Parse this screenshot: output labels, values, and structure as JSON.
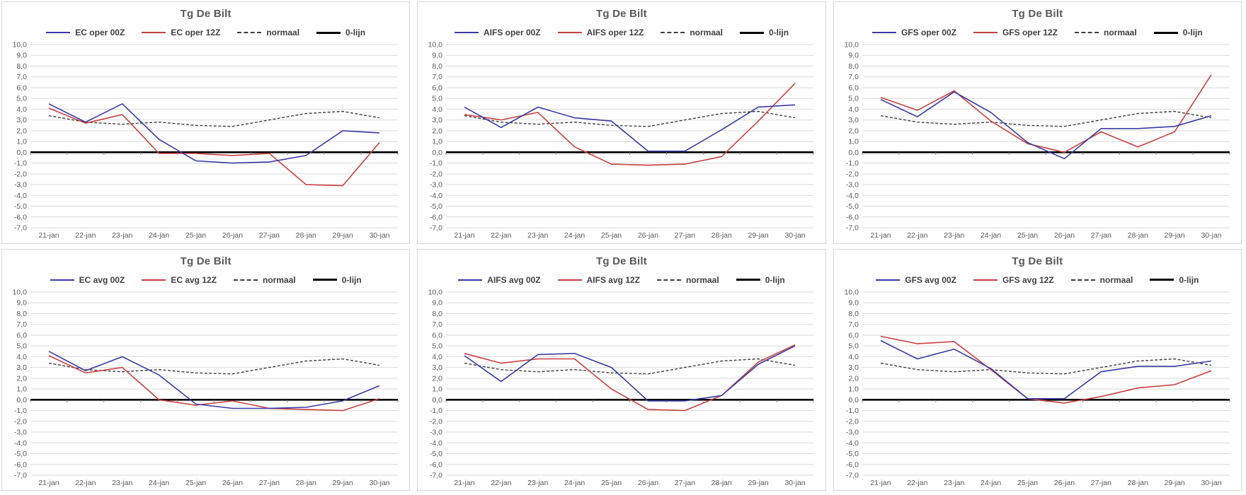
{
  "axes": {
    "y_max": 10,
    "y_min": -7,
    "y_tick_labels": [
      "10,0",
      "9,0",
      "8,0",
      "7,0",
      "6,0",
      "5,0",
      "4,0",
      "3,0",
      "2,0",
      "1,0",
      "0,0",
      "-1,0",
      "-2,0",
      "-3,0",
      "-4,0",
      "-5,0",
      "-6,0",
      "-7,0"
    ],
    "x_labels": [
      "21-jan",
      "22-jan",
      "23-jan",
      "24-jan",
      "25-jan",
      "26-jan",
      "27-jan",
      "28-jan",
      "29-jan",
      "30-jan"
    ]
  },
  "colors": {
    "series_00z_blue": "#3A3AA3",
    "series_12z_red": "#C84040",
    "normaal_dashed": "#3F3F3F",
    "zero_line": "#000000",
    "gridline": "#D9D9D9",
    "axis_text": "#595959",
    "panel_border": "#D7D7D7",
    "title_text": "#595959"
  },
  "chart_data": [
    {
      "type": "line",
      "title": "Tg De Bilt",
      "x": [
        "21-jan",
        "22-jan",
        "23-jan",
        "24-jan",
        "25-jan",
        "26-jan",
        "27-jan",
        "28-jan",
        "29-jan",
        "30-jan"
      ],
      "ylim": [
        -7,
        10
      ],
      "legend_position": "top",
      "grid": true,
      "series": [
        {
          "name": "EC oper 00Z",
          "color": "#3A3AA3",
          "style": "solid",
          "values": [
            4.5,
            2.8,
            4.5,
            1.2,
            -0.8,
            -1.0,
            -0.9,
            -0.3,
            2.0,
            1.8
          ]
        },
        {
          "name": "EC oper 12Z",
          "color": "#C84040",
          "style": "solid",
          "values": [
            4.1,
            2.7,
            3.5,
            -0.1,
            -0.1,
            -0.3,
            -0.1,
            -3.0,
            -3.1,
            0.9
          ]
        },
        {
          "name": "normaal",
          "color": "#3F3F3F",
          "style": "dashed",
          "values": [
            3.4,
            2.8,
            2.6,
            2.8,
            2.5,
            2.4,
            3.0,
            3.6,
            3.8,
            3.2
          ]
        },
        {
          "name": "0-lijn",
          "color": "#000000",
          "style": "zero",
          "values": [
            0,
            0,
            0,
            0,
            0,
            0,
            0,
            0,
            0,
            0
          ]
        }
      ]
    },
    {
      "type": "line",
      "title": "Tg De Bilt",
      "x": [
        "21-jan",
        "22-jan",
        "23-jan",
        "24-jan",
        "25-jan",
        "26-jan",
        "27-jan",
        "28-jan",
        "29-jan",
        "30-jan"
      ],
      "ylim": [
        -7,
        10
      ],
      "legend_position": "top",
      "grid": true,
      "series": [
        {
          "name": "AIFS oper 00Z",
          "color": "#3A3AA3",
          "style": "solid",
          "values": [
            4.2,
            2.3,
            4.2,
            3.2,
            2.9,
            0.1,
            0.1,
            2.1,
            4.2,
            4.4
          ]
        },
        {
          "name": "AIFS oper 12Z",
          "color": "#C84040",
          "style": "solid",
          "values": [
            3.5,
            3.0,
            3.7,
            0.5,
            -1.1,
            -1.2,
            -1.1,
            -0.4,
            2.9,
            6.4
          ]
        },
        {
          "name": "normaal",
          "color": "#3F3F3F",
          "style": "dashed",
          "values": [
            3.4,
            2.8,
            2.6,
            2.8,
            2.5,
            2.4,
            3.0,
            3.6,
            3.8,
            3.2
          ]
        },
        {
          "name": "0-lijn",
          "color": "#000000",
          "style": "zero",
          "values": [
            0,
            0,
            0,
            0,
            0,
            0,
            0,
            0,
            0,
            0
          ]
        }
      ]
    },
    {
      "type": "line",
      "title": "Tg De Bilt",
      "x": [
        "21-jan",
        "22-jan",
        "23-jan",
        "24-jan",
        "25-jan",
        "26-jan",
        "27-jan",
        "28-jan",
        "29-jan",
        "30-jan"
      ],
      "ylim": [
        -7,
        10
      ],
      "legend_position": "top",
      "grid": true,
      "series": [
        {
          "name": "GFS oper 00Z",
          "color": "#3A3AA3",
          "style": "solid",
          "values": [
            4.9,
            3.3,
            5.6,
            3.7,
            0.9,
            -0.6,
            2.2,
            2.2,
            2.4,
            3.4
          ]
        },
        {
          "name": "GFS oper 12Z",
          "color": "#C84040",
          "style": "solid",
          "values": [
            5.1,
            3.9,
            5.7,
            2.9,
            0.8,
            0.0,
            1.9,
            0.5,
            1.9,
            7.2
          ]
        },
        {
          "name": "normaal",
          "color": "#3F3F3F",
          "style": "dashed",
          "values": [
            3.4,
            2.8,
            2.6,
            2.8,
            2.5,
            2.4,
            3.0,
            3.6,
            3.8,
            3.2
          ]
        },
        {
          "name": "0-lijn",
          "color": "#000000",
          "style": "zero",
          "values": [
            0,
            0,
            0,
            0,
            0,
            0,
            0,
            0,
            0,
            0
          ]
        }
      ]
    },
    {
      "type": "line",
      "title": "Tg De Bilt",
      "x": [
        "21-jan",
        "22-jan",
        "23-jan",
        "24-jan",
        "25-jan",
        "26-jan",
        "27-jan",
        "28-jan",
        "29-jan",
        "30-jan"
      ],
      "ylim": [
        -7,
        10
      ],
      "legend_position": "top",
      "grid": true,
      "series": [
        {
          "name": "EC avg 00Z",
          "color": "#3A3AA3",
          "style": "solid",
          "values": [
            4.5,
            2.7,
            4.0,
            2.3,
            -0.4,
            -0.8,
            -0.8,
            -0.7,
            -0.1,
            1.3
          ]
        },
        {
          "name": "EC avg 12Z",
          "color": "#C84040",
          "style": "solid",
          "values": [
            4.1,
            2.5,
            3.0,
            0.0,
            -0.5,
            -0.1,
            -0.8,
            -0.9,
            -1.0,
            0.1
          ]
        },
        {
          "name": "normaal",
          "color": "#3F3F3F",
          "style": "dashed",
          "values": [
            3.4,
            2.8,
            2.6,
            2.8,
            2.5,
            2.4,
            3.0,
            3.6,
            3.8,
            3.2
          ]
        },
        {
          "name": "0-lijn",
          "color": "#000000",
          "style": "zero",
          "values": [
            0,
            0,
            0,
            0,
            0,
            0,
            0,
            0,
            0,
            0
          ]
        }
      ]
    },
    {
      "type": "line",
      "title": "Tg De Bilt",
      "x": [
        "21-jan",
        "22-jan",
        "23-jan",
        "24-jan",
        "25-jan",
        "26-jan",
        "27-jan",
        "28-jan",
        "29-jan",
        "30-jan"
      ],
      "ylim": [
        -7,
        10
      ],
      "legend_position": "top",
      "grid": true,
      "series": [
        {
          "name": "AIFS avg 00Z",
          "color": "#3A3AA3",
          "style": "solid",
          "values": [
            4.1,
            1.7,
            4.2,
            4.3,
            3.0,
            -0.1,
            -0.1,
            0.4,
            3.3,
            5.0
          ]
        },
        {
          "name": "AIFS avg 12Z",
          "color": "#C84040",
          "style": "solid",
          "values": [
            4.3,
            3.4,
            3.8,
            3.8,
            1.0,
            -0.9,
            -1.0,
            0.4,
            3.5,
            5.1
          ]
        },
        {
          "name": "normaal",
          "color": "#3F3F3F",
          "style": "dashed",
          "values": [
            3.4,
            2.8,
            2.6,
            2.8,
            2.5,
            2.4,
            3.0,
            3.6,
            3.8,
            3.2
          ]
        },
        {
          "name": "0-lijn",
          "color": "#000000",
          "style": "zero",
          "values": [
            0,
            0,
            0,
            0,
            0,
            0,
            0,
            0,
            0,
            0
          ]
        }
      ]
    },
    {
      "type": "line",
      "title": "Tg De Bilt",
      "x": [
        "21-jan",
        "22-jan",
        "23-jan",
        "24-jan",
        "25-jan",
        "26-jan",
        "27-jan",
        "28-jan",
        "29-jan",
        "30-jan"
      ],
      "ylim": [
        -7,
        10
      ],
      "legend_position": "top",
      "grid": true,
      "series": [
        {
          "name": "GFS avg 00Z",
          "color": "#3A3AA3",
          "style": "solid",
          "values": [
            5.5,
            3.8,
            4.7,
            2.9,
            0.1,
            0.1,
            2.6,
            3.1,
            3.1,
            3.6
          ]
        },
        {
          "name": "GFS avg 12Z",
          "color": "#C84040",
          "style": "solid",
          "values": [
            5.9,
            5.2,
            5.4,
            2.8,
            0.1,
            -0.3,
            0.3,
            1.1,
            1.4,
            2.7
          ]
        },
        {
          "name": "normaal",
          "color": "#3F3F3F",
          "style": "dashed",
          "values": [
            3.4,
            2.8,
            2.6,
            2.8,
            2.5,
            2.4,
            3.0,
            3.6,
            3.8,
            3.2
          ]
        },
        {
          "name": "0-lijn",
          "color": "#000000",
          "style": "zero",
          "values": [
            0,
            0,
            0,
            0,
            0,
            0,
            0,
            0,
            0,
            0
          ]
        }
      ]
    }
  ]
}
